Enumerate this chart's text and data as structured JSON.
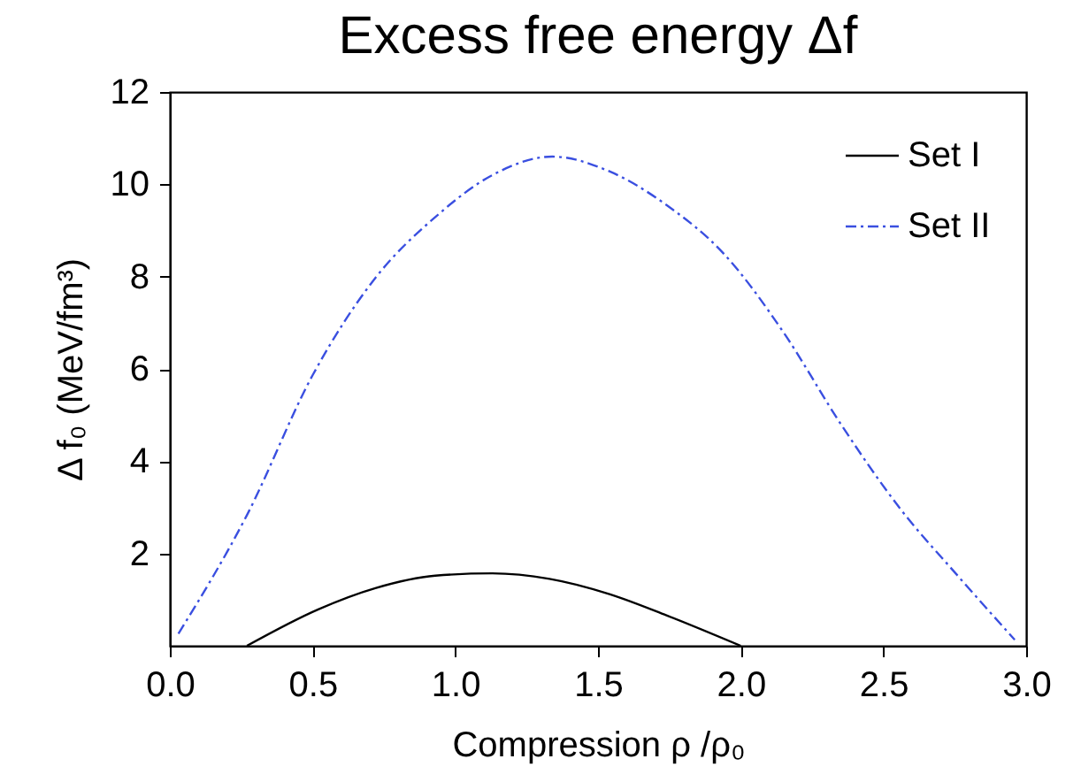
{
  "chart_data": {
    "type": "line",
    "title": "Excess free energy Δf",
    "xlabel": "Compression  ρ /ρ₀",
    "ylabel": "Δ f₀ (MeV/fm³)",
    "xlim": [
      0,
      3
    ],
    "xticks": [
      {
        "value": 0,
        "label": "0.0"
      },
      0.5,
      {
        "value": 1,
        "label": "1.0"
      },
      1.5,
      {
        "value": 2,
        "label": "2.0"
      },
      2.5,
      {
        "value": 3,
        "label": "3.0"
      }
    ],
    "ylim": [
      0,
      12
    ],
    "yticks": [
      2,
      4,
      6,
      8,
      10,
      12
    ],
    "grid": false,
    "legend": "top right",
    "series": [
      {
        "name": "Set I",
        "color": "#000000",
        "line_style": "solid",
        "x": [
          0.27,
          0.52,
          0.72,
          0.93,
          1.13,
          1.33,
          1.54,
          1.74,
          2.0
        ],
        "values": [
          0,
          0.79,
          1.25,
          1.52,
          1.57,
          1.45,
          1.12,
          0.66,
          0
        ]
      },
      {
        "name": "Set II",
        "color": "#3a4fe0",
        "line_style": "dashdot",
        "x": [
          0.03,
          0.27,
          0.5,
          0.72,
          0.93,
          1.13,
          1.34,
          1.54,
          1.74,
          1.94,
          2.15,
          2.35,
          2.56,
          2.76,
          2.96
        ],
        "values": [
          0.26,
          2.83,
          5.86,
          7.97,
          9.29,
          10.2,
          10.6,
          10.28,
          9.55,
          8.5,
          6.79,
          4.81,
          2.96,
          1.52,
          0.13
        ]
      }
    ]
  }
}
